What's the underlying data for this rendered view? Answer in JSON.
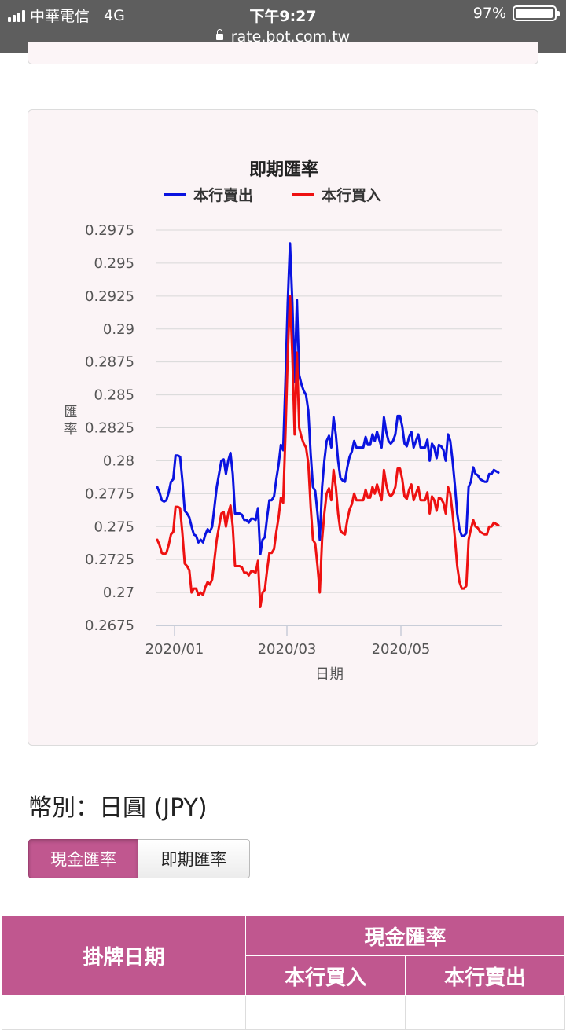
{
  "status_bar": {
    "carrier": "中華電信",
    "network": "4G",
    "time": "下午9:27",
    "battery": "97%",
    "battery_level": 0.97,
    "url": "rate.bot.com.tw"
  },
  "chart_data": {
    "type": "line",
    "title": "即期匯率",
    "ylabel": "匯率",
    "xlabel": "日期",
    "ylim": [
      0.2675,
      0.2975
    ],
    "yticks": [
      "0.2975",
      "0.295",
      "0.2925",
      "0.29",
      "0.2875",
      "0.285",
      "0.2825",
      "0.28",
      "0.2775",
      "0.275",
      "0.2725",
      "0.27",
      "0.2675"
    ],
    "xticks": [
      "2020/01",
      "2020/03",
      "2020/05"
    ],
    "legend_position": "top",
    "grid": true,
    "series": [
      {
        "name": "本行賣出",
        "color": "#0a13e0",
        "values": [
          0.278,
          0.2776,
          0.277,
          0.2769,
          0.277,
          0.2776,
          0.2784,
          0.2786,
          0.2804,
          0.2804,
          0.2803,
          0.2785,
          0.2762,
          0.276,
          0.2757,
          0.275,
          0.2744,
          0.2743,
          0.2738,
          0.274,
          0.2738,
          0.2744,
          0.2748,
          0.2746,
          0.275,
          0.2765,
          0.278,
          0.279,
          0.28,
          0.2801,
          0.279,
          0.28,
          0.2806,
          0.279,
          0.276,
          0.276,
          0.276,
          0.2759,
          0.2755,
          0.2755,
          0.2753,
          0.2756,
          0.2756,
          0.2755,
          0.2764,
          0.2729,
          0.274,
          0.2742,
          0.2757,
          0.277,
          0.277,
          0.2773,
          0.2786,
          0.2797,
          0.2812,
          0.2808,
          0.286,
          0.292,
          0.2965,
          0.292,
          0.286,
          0.2922,
          0.2865,
          0.2858,
          0.2853,
          0.285,
          0.2838,
          0.2805,
          0.278,
          0.2777,
          0.276,
          0.274,
          0.278,
          0.28,
          0.2815,
          0.2819,
          0.281,
          0.2833,
          0.282,
          0.28,
          0.2787,
          0.2785,
          0.2784,
          0.2795,
          0.2803,
          0.2807,
          0.2815,
          0.281,
          0.281,
          0.281,
          0.281,
          0.2818,
          0.2812,
          0.2812,
          0.282,
          0.2815,
          0.2822,
          0.2816,
          0.281,
          0.2833,
          0.2822,
          0.2815,
          0.2813,
          0.2815,
          0.282,
          0.2834,
          0.2834,
          0.2826,
          0.2813,
          0.2811,
          0.2818,
          0.2822,
          0.281,
          0.2815,
          0.282,
          0.281,
          0.281,
          0.281,
          0.2816,
          0.28,
          0.2813,
          0.281,
          0.2802,
          0.2812,
          0.2811,
          0.2808,
          0.28,
          0.282,
          0.2815,
          0.28,
          0.2781,
          0.276,
          0.2748,
          0.2743,
          0.2743,
          0.2745,
          0.278,
          0.2784,
          0.2795,
          0.279,
          0.2789,
          0.2786,
          0.2785,
          0.2784,
          0.2784,
          0.279,
          0.279,
          0.2793,
          0.2792,
          0.2791
        ]
      },
      {
        "name": "本行買入",
        "color": "#ee1111",
        "values": [
          0.274,
          0.2736,
          0.273,
          0.2729,
          0.273,
          0.2736,
          0.2744,
          0.2746,
          0.2765,
          0.2765,
          0.2764,
          0.2745,
          0.2722,
          0.272,
          0.2717,
          0.27,
          0.2703,
          0.2703,
          0.2698,
          0.27,
          0.2698,
          0.2704,
          0.2708,
          0.2706,
          0.271,
          0.2725,
          0.274,
          0.275,
          0.276,
          0.2761,
          0.275,
          0.276,
          0.2766,
          0.275,
          0.272,
          0.272,
          0.272,
          0.2719,
          0.2715,
          0.2715,
          0.2713,
          0.2716,
          0.2716,
          0.2715,
          0.2724,
          0.2689,
          0.27,
          0.2702,
          0.2717,
          0.273,
          0.273,
          0.2733,
          0.2746,
          0.2757,
          0.2772,
          0.2768,
          0.282,
          0.288,
          0.2925,
          0.288,
          0.282,
          0.2882,
          0.2825,
          0.2818,
          0.2813,
          0.281,
          0.2798,
          0.2765,
          0.274,
          0.2737,
          0.272,
          0.27,
          0.274,
          0.276,
          0.2775,
          0.2779,
          0.277,
          0.2793,
          0.278,
          0.276,
          0.2747,
          0.2745,
          0.2744,
          0.2755,
          0.2763,
          0.2767,
          0.2775,
          0.277,
          0.277,
          0.277,
          0.277,
          0.2778,
          0.2772,
          0.2772,
          0.278,
          0.2775,
          0.2782,
          0.2776,
          0.277,
          0.2793,
          0.2782,
          0.2775,
          0.2773,
          0.2775,
          0.278,
          0.2794,
          0.2794,
          0.2786,
          0.2773,
          0.2771,
          0.2778,
          0.2782,
          0.277,
          0.2775,
          0.278,
          0.277,
          0.277,
          0.277,
          0.2776,
          0.276,
          0.2773,
          0.277,
          0.2762,
          0.2772,
          0.2771,
          0.2768,
          0.276,
          0.278,
          0.2775,
          0.276,
          0.2741,
          0.272,
          0.2708,
          0.2703,
          0.2703,
          0.2705,
          0.274,
          0.2748,
          0.2755,
          0.275,
          0.2749,
          0.2746,
          0.2745,
          0.2744,
          0.2744,
          0.275,
          0.275,
          0.2753,
          0.2752,
          0.2751
        ]
      }
    ]
  },
  "currency_label": "幣別：日圓 (JPY)",
  "buttons": [
    {
      "label": "現金匯率",
      "active": true
    },
    {
      "label": "即期匯率",
      "active": false
    }
  ],
  "table": {
    "col_date": "掛牌日期",
    "group_header": "現金匯率",
    "col_buy": "本行買入",
    "col_sell": "本行賣出"
  }
}
